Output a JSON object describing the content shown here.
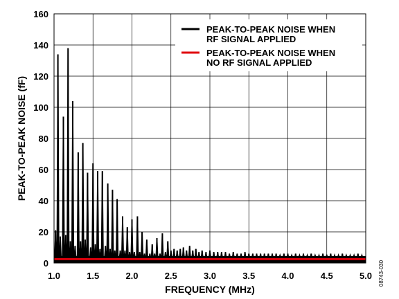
{
  "chart_data": {
    "type": "line",
    "title": "",
    "xlabel": "FREQUENCY (MHz)",
    "ylabel": "PEAK-TO-PEAK NOISE (fF)",
    "xlim": [
      1.0,
      5.0
    ],
    "ylim": [
      0,
      160
    ],
    "xticks": [
      "1.0",
      "1.5",
      "2.0",
      "2.5",
      "3.0",
      "3.5",
      "4.0",
      "4.5",
      "5.0"
    ],
    "yticks": [
      "0",
      "20",
      "40",
      "60",
      "80",
      "100",
      "120",
      "140",
      "160"
    ],
    "grid": true,
    "legend_position": "top-right",
    "legend": [
      {
        "lines": [
          "PEAK-TO-PEAK NOISE WHEN",
          "RF SIGNAL APPLIED"
        ],
        "color": "#000000"
      },
      {
        "lines": [
          "PEAK-TO-PEAK NOISE WHEN",
          "NO RF SIGNAL APPLIED"
        ],
        "color": "#e0000b"
      }
    ],
    "series": [
      {
        "name": "PEAK-TO-PEAK NOISE WHEN RF SIGNAL APPLIED",
        "color": "#000000",
        "style": "spikes",
        "baseline": 3,
        "peaks": [
          {
            "x": 1.02,
            "y": 21
          },
          {
            "x": 1.05,
            "y": 134
          },
          {
            "x": 1.08,
            "y": 17
          },
          {
            "x": 1.12,
            "y": 94
          },
          {
            "x": 1.15,
            "y": 18
          },
          {
            "x": 1.18,
            "y": 138
          },
          {
            "x": 1.21,
            "y": 14
          },
          {
            "x": 1.24,
            "y": 104
          },
          {
            "x": 1.27,
            "y": 11
          },
          {
            "x": 1.31,
            "y": 71
          },
          {
            "x": 1.34,
            "y": 14
          },
          {
            "x": 1.37,
            "y": 77
          },
          {
            "x": 1.4,
            "y": 15
          },
          {
            "x": 1.43,
            "y": 58
          },
          {
            "x": 1.47,
            "y": 10
          },
          {
            "x": 1.5,
            "y": 64
          },
          {
            "x": 1.53,
            "y": 12
          },
          {
            "x": 1.56,
            "y": 59
          },
          {
            "x": 1.59,
            "y": 9
          },
          {
            "x": 1.62,
            "y": 59
          },
          {
            "x": 1.66,
            "y": 11
          },
          {
            "x": 1.69,
            "y": 51
          },
          {
            "x": 1.72,
            "y": 9
          },
          {
            "x": 1.75,
            "y": 47
          },
          {
            "x": 1.78,
            "y": 8
          },
          {
            "x": 1.81,
            "y": 41
          },
          {
            "x": 1.85,
            "y": 8
          },
          {
            "x": 1.88,
            "y": 30
          },
          {
            "x": 1.91,
            "y": 8
          },
          {
            "x": 1.94,
            "y": 23
          },
          {
            "x": 1.97,
            "y": 7
          },
          {
            "x": 2.0,
            "y": 28
          },
          {
            "x": 2.03,
            "y": 7
          },
          {
            "x": 2.07,
            "y": 30
          },
          {
            "x": 2.1,
            "y": 7
          },
          {
            "x": 2.13,
            "y": 20
          },
          {
            "x": 2.16,
            "y": 6
          },
          {
            "x": 2.19,
            "y": 15
          },
          {
            "x": 2.23,
            "y": 6
          },
          {
            "x": 2.26,
            "y": 12
          },
          {
            "x": 2.29,
            "y": 6
          },
          {
            "x": 2.32,
            "y": 16
          },
          {
            "x": 2.36,
            "y": 6
          },
          {
            "x": 2.39,
            "y": 19
          },
          {
            "x": 2.43,
            "y": 7
          },
          {
            "x": 2.46,
            "y": 14
          },
          {
            "x": 2.5,
            "y": 8
          },
          {
            "x": 2.54,
            "y": 9
          },
          {
            "x": 2.58,
            "y": 8
          },
          {
            "x": 2.62,
            "y": 9
          },
          {
            "x": 2.66,
            "y": 10
          },
          {
            "x": 2.7,
            "y": 8
          },
          {
            "x": 2.74,
            "y": 11
          },
          {
            "x": 2.78,
            "y": 8
          },
          {
            "x": 2.82,
            "y": 9
          },
          {
            "x": 2.86,
            "y": 7
          },
          {
            "x": 2.9,
            "y": 8
          },
          {
            "x": 2.95,
            "y": 7
          },
          {
            "x": 3.0,
            "y": 8
          },
          {
            "x": 3.05,
            "y": 7
          },
          {
            "x": 3.1,
            "y": 7
          },
          {
            "x": 3.15,
            "y": 7
          },
          {
            "x": 3.2,
            "y": 7
          },
          {
            "x": 3.25,
            "y": 6
          },
          {
            "x": 3.3,
            "y": 7
          },
          {
            "x": 3.35,
            "y": 6
          },
          {
            "x": 3.4,
            "y": 6
          },
          {
            "x": 3.45,
            "y": 7
          },
          {
            "x": 3.5,
            "y": 6
          },
          {
            "x": 3.55,
            "y": 6
          },
          {
            "x": 3.6,
            "y": 6
          },
          {
            "x": 3.65,
            "y": 6
          },
          {
            "x": 3.7,
            "y": 6
          },
          {
            "x": 3.75,
            "y": 6
          },
          {
            "x": 3.8,
            "y": 6
          },
          {
            "x": 3.85,
            "y": 6
          },
          {
            "x": 3.9,
            "y": 5
          },
          {
            "x": 3.95,
            "y": 6
          },
          {
            "x": 4.0,
            "y": 6
          },
          {
            "x": 4.05,
            "y": 5
          },
          {
            "x": 4.1,
            "y": 6
          },
          {
            "x": 4.15,
            "y": 5
          },
          {
            "x": 4.2,
            "y": 6
          },
          {
            "x": 4.25,
            "y": 5
          },
          {
            "x": 4.3,
            "y": 6
          },
          {
            "x": 4.35,
            "y": 5
          },
          {
            "x": 4.4,
            "y": 5
          },
          {
            "x": 4.45,
            "y": 6
          },
          {
            "x": 4.5,
            "y": 5
          },
          {
            "x": 4.55,
            "y": 6
          },
          {
            "x": 4.6,
            "y": 5
          },
          {
            "x": 4.65,
            "y": 5
          },
          {
            "x": 4.7,
            "y": 6
          },
          {
            "x": 4.75,
            "y": 5
          },
          {
            "x": 4.8,
            "y": 5
          },
          {
            "x": 4.85,
            "y": 5
          },
          {
            "x": 4.9,
            "y": 6
          },
          {
            "x": 4.95,
            "y": 5
          }
        ]
      },
      {
        "name": "PEAK-TO-PEAK NOISE WHEN NO RF SIGNAL APPLIED",
        "color": "#e0000b",
        "style": "line",
        "x": [
          1.0,
          5.0
        ],
        "y": [
          2.5,
          2.5
        ]
      }
    ],
    "figure_id": "08743-030"
  }
}
